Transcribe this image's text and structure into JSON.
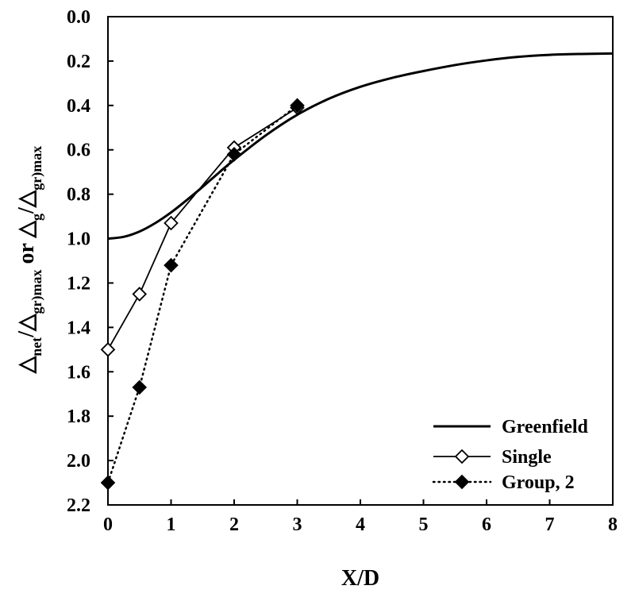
{
  "chart_data": {
    "type": "line",
    "title": "",
    "xlabel": "X/D",
    "ylabel": {
      "parts": [
        {
          "text": "△",
          "sub": false
        },
        {
          "text": "net",
          "sub": true
        },
        {
          "text": "/△",
          "sub": false
        },
        {
          "text": "gr)max",
          "sub": true
        },
        {
          "text": " or △",
          "sub": false
        },
        {
          "text": "g",
          "sub": true
        },
        {
          "text": "/△",
          "sub": false
        },
        {
          "text": "gr)max",
          "sub": true
        }
      ]
    },
    "xlim": [
      0,
      8
    ],
    "ylim": [
      0.0,
      2.2
    ],
    "y_inverted": true,
    "x_ticks": [
      "0",
      "1",
      "2",
      "3",
      "4",
      "5",
      "6",
      "7",
      "8"
    ],
    "y_ticks": [
      "0.0",
      "0.2",
      "0.4",
      "0.6",
      "0.8",
      "1.0",
      "1.2",
      "1.4",
      "1.6",
      "1.8",
      "2.0",
      "2.2"
    ],
    "grid": false,
    "legend_position": "bottom-right",
    "series": [
      {
        "name": "Greenfield",
        "style": "solid-thick",
        "marker": "none",
        "color": "#000000",
        "x": [
          0,
          0.25,
          0.5,
          0.75,
          1,
          1.25,
          1.5,
          1.75,
          2,
          2.5,
          3,
          3.5,
          4,
          4.5,
          5,
          5.5,
          6,
          6.5,
          7,
          7.5,
          8
        ],
        "y": [
          1.0,
          0.992,
          0.968,
          0.93,
          0.882,
          0.826,
          0.767,
          0.705,
          0.645,
          0.535,
          0.442,
          0.37,
          0.316,
          0.276,
          0.245,
          0.218,
          0.197,
          0.181,
          0.172,
          0.168,
          0.166
        ]
      },
      {
        "name": "Single",
        "style": "solid",
        "marker": "open-diamond",
        "color": "#000000",
        "x": [
          0,
          0.5,
          1,
          2,
          3
        ],
        "y": [
          1.5,
          1.25,
          0.93,
          0.59,
          0.41
        ]
      },
      {
        "name": "Group, 2",
        "style": "dotted",
        "marker": "filled-diamond",
        "color": "#000000",
        "x": [
          0,
          0.5,
          1,
          2,
          3
        ],
        "y": [
          2.1,
          1.67,
          1.12,
          0.62,
          0.4
        ]
      }
    ]
  }
}
